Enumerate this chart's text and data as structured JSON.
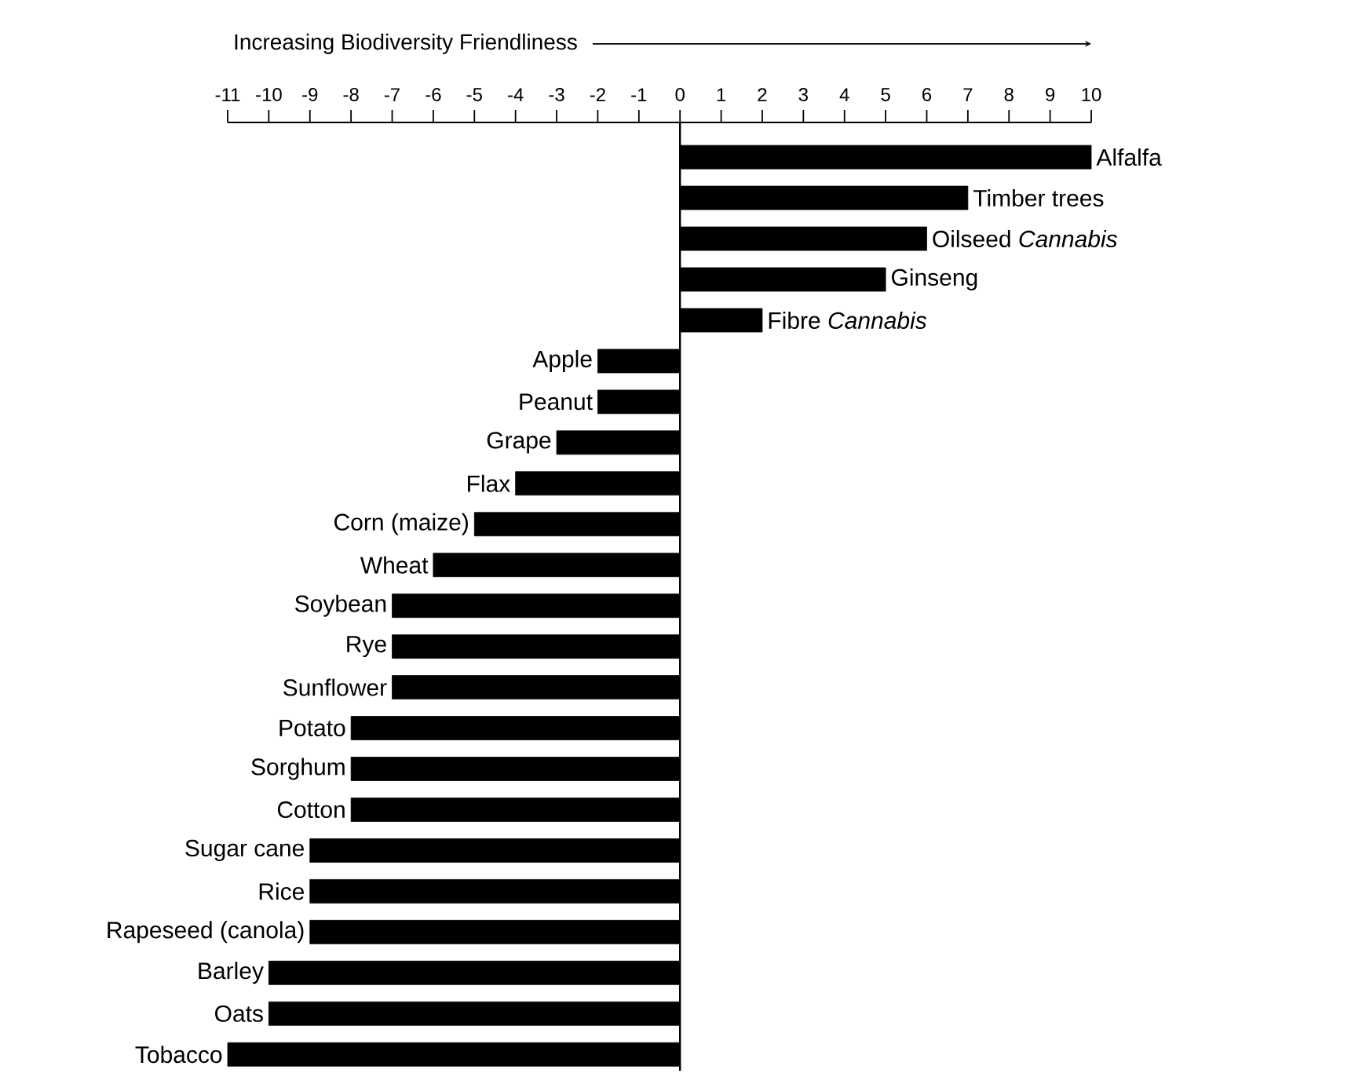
{
  "chart_data": {
    "type": "bar",
    "orientation": "horizontal",
    "xlabel": "Increasing Biodiversity Friendliness",
    "categories": [
      "Alfalfa",
      "Timber trees",
      "Oilseed *Cannabis*",
      "Ginseng",
      "Fibre *Cannabis*",
      "Apple",
      "Peanut",
      "Grape",
      "Flax",
      "Corn (maize)",
      "Wheat",
      "Soybean",
      "Rye",
      "Sunflower",
      "Potato",
      "Sorghum",
      "Cotton",
      "Sugar cane",
      "Rice",
      "Rapeseed (canola)",
      "Barley",
      "Oats",
      "Tobacco"
    ],
    "values": [
      10,
      7,
      6,
      5,
      2,
      -2,
      -2,
      -3,
      -4,
      -5,
      -6,
      -7,
      -7,
      -7,
      -8,
      -8,
      -8,
      -9,
      -9,
      -9,
      -10,
      -10,
      -11
    ],
    "color": "#000000",
    "xlim": [
      -11,
      10
    ],
    "xticks": [
      -11,
      -10,
      -9,
      -8,
      -7,
      -6,
      -5,
      -4,
      -3,
      -2,
      -1,
      0,
      1,
      2,
      3,
      4,
      5,
      6,
      7,
      8,
      9,
      10
    ]
  }
}
